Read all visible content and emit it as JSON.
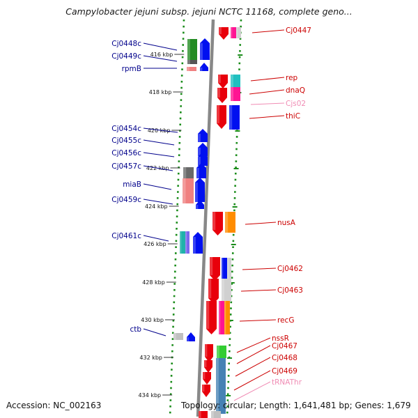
{
  "title": "Campylobacter jejuni subsp. jejuni NCTC 11168, complete geno...",
  "accession_text": "Accession: NC_002163",
  "topology_text": "Topology: circular; Length: 1,641,481 bp; Genes: 1,679",
  "ruler_ticks": [
    "416 kbp",
    "418 kbp",
    "420 kbp",
    "422 kbp",
    "424 kbp",
    "426 kbp",
    "428 kbp",
    "430 kbp",
    "432 kbp",
    "434 kbp"
  ],
  "genes_left": [
    "Cj0448c",
    "Cj0449c",
    "rpmB",
    "Cj0454c",
    "Cj0455c",
    "Cj0456c",
    "Cj0457c",
    "miaB",
    "Cj0459c",
    "Cj0461c",
    "ctb"
  ],
  "genes_right": [
    "Cj0447",
    "rep",
    "dnaQ",
    "Cjs02",
    "thiC",
    "nusA",
    "Cj0462",
    "Cj0463",
    "recG",
    "nssR",
    "Cj0467",
    "Cj0468",
    "Cj0469",
    "tRNAThr"
  ],
  "colors": {
    "forward_gene": "#e8000b",
    "reverse_gene": "#0010f0",
    "left_label": "#00008b",
    "right_label": "#cc0000",
    "rna_label": "#f08cb4",
    "dotted_border": "#1a8c1a",
    "axis": "#888888"
  }
}
